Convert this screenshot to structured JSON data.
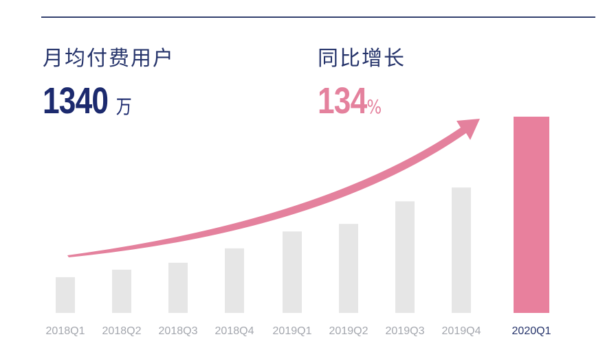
{
  "stats": {
    "users_label": "月均付费用户",
    "users_value": "1340",
    "users_unit": "万",
    "yoy_label": "同比增长",
    "yoy_value": "134",
    "yoy_unit": "%"
  },
  "colors": {
    "rule": "#33406e",
    "navy": "#1c2a6e",
    "pink": "#e4819d",
    "bar_grey": "#e6e6e6",
    "bar_highlight": "#e8809d",
    "tick_grey": "#a3a6ad",
    "tick_highlight": "#26346b"
  },
  "chart_data": {
    "type": "bar",
    "categories": [
      "2018Q1",
      "2018Q2",
      "2018Q3",
      "2018Q4",
      "2019Q1",
      "2019Q2",
      "2019Q3",
      "2019Q4",
      "2020Q1"
    ],
    "values": [
      57,
      69,
      80,
      103,
      130,
      142,
      178,
      200,
      313
    ],
    "highlight_index": 8,
    "ylim": [
      0,
      313
    ],
    "grid": false,
    "trend_arrow": true
  }
}
